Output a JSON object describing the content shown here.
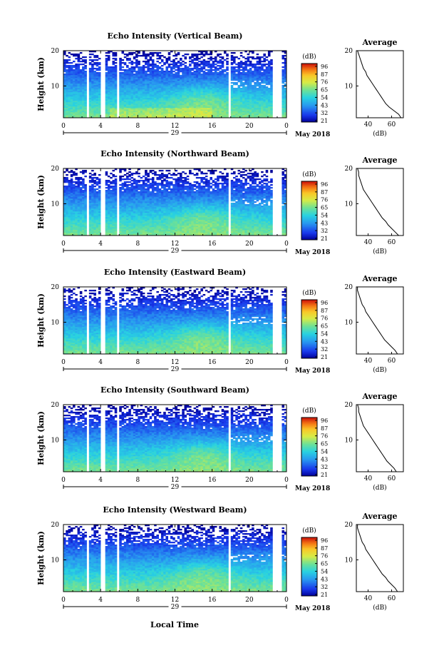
{
  "figure": {
    "bottom_label": "Local Time",
    "date_label": "May 2018",
    "heights": [
      0,
      10,
      20
    ],
    "ylabel": "Height (km)",
    "xticks": [
      "0",
      "4",
      "8",
      "12",
      "16",
      "20",
      "0"
    ],
    "colorbar_unit": "(dB)",
    "colorbar_ticks": [
      "96",
      "87",
      "76",
      "65",
      "54",
      "43",
      "32",
      "21"
    ],
    "profile_title": "Average",
    "profile_xticks": [
      "40",
      "60"
    ],
    "profile_xlabel": "(dB)"
  },
  "chart_data": [
    {
      "type": "heatmap",
      "title": "Echo Intensity (Vertical Beam)",
      "day_label": "29",
      "xlabel": "Local Time",
      "ylabel": "Height (km)",
      "xlim": [
        0,
        24
      ],
      "ylim": [
        1,
        20
      ],
      "color_range": [
        21,
        96
      ],
      "data_gaps_hours": [
        [
          2.4,
          2.7
        ],
        [
          4.1,
          4.4
        ],
        [
          5.7,
          6.0
        ],
        [
          17.7,
          18.0
        ],
        [
          22.6,
          23.5
        ]
      ],
      "profile": {
        "title": "Average",
        "xlabel": "(dB)",
        "heights_km": [
          1,
          2,
          3,
          4,
          5,
          6,
          7,
          8,
          9,
          10,
          11,
          12,
          13,
          14,
          15,
          16,
          17,
          18,
          19,
          20
        ],
        "values_db": [
          68,
          66,
          62,
          58,
          55,
          53,
          51,
          49,
          47,
          45,
          43,
          41,
          39,
          38,
          36,
          35,
          34,
          33,
          32,
          31
        ]
      }
    },
    {
      "type": "heatmap",
      "title": "Echo Intensity (Northward Beam)",
      "day_label": "29",
      "xlabel": "Local Time",
      "ylabel": "Height (km)",
      "xlim": [
        0,
        24
      ],
      "ylim": [
        1,
        20
      ],
      "color_range": [
        21,
        96
      ],
      "data_gaps_hours": [
        [
          2.4,
          2.7
        ],
        [
          4.1,
          4.4
        ],
        [
          5.7,
          6.0
        ],
        [
          17.7,
          18.0
        ],
        [
          22.6,
          23.5
        ]
      ],
      "profile": {
        "title": "Average",
        "xlabel": "(dB)",
        "heights_km": [
          1,
          2,
          3,
          4,
          5,
          6,
          7,
          8,
          9,
          10,
          11,
          12,
          13,
          14,
          15,
          16,
          17,
          18,
          19,
          20
        ],
        "values_db": [
          66,
          63,
          60,
          57,
          55,
          52,
          50,
          48,
          46,
          44,
          42,
          40,
          38,
          36,
          35,
          34,
          33,
          32,
          32,
          31
        ]
      }
    },
    {
      "type": "heatmap",
      "title": "Echo Intensity (Eastward Beam)",
      "day_label": "29",
      "xlabel": "Local Time",
      "ylabel": "Height (km)",
      "xlim": [
        0,
        24
      ],
      "ylim": [
        1,
        20
      ],
      "color_range": [
        21,
        96
      ],
      "data_gaps_hours": [
        [
          2.4,
          2.7
        ],
        [
          4.1,
          4.4
        ],
        [
          5.7,
          6.0
        ],
        [
          17.7,
          18.0
        ],
        [
          22.6,
          23.5
        ]
      ],
      "profile": {
        "title": "Average",
        "xlabel": "(dB)",
        "heights_km": [
          1,
          2,
          3,
          4,
          5,
          6,
          7,
          8,
          9,
          10,
          11,
          12,
          13,
          14,
          15,
          16,
          17,
          18,
          19,
          20
        ],
        "values_db": [
          65,
          63,
          60,
          57,
          54,
          52,
          50,
          48,
          46,
          44,
          42,
          40,
          38,
          37,
          35,
          34,
          33,
          32,
          31,
          31
        ]
      }
    },
    {
      "type": "heatmap",
      "title": "Echo Intensity (Southward Beam)",
      "day_label": "29",
      "xlabel": "Local Time",
      "ylabel": "Height (km)",
      "xlim": [
        0,
        24
      ],
      "ylim": [
        1,
        20
      ],
      "color_range": [
        21,
        96
      ],
      "data_gaps_hours": [
        [
          2.4,
          2.7
        ],
        [
          4.1,
          4.4
        ],
        [
          5.7,
          6.0
        ],
        [
          17.7,
          18.0
        ],
        [
          22.6,
          23.5
        ]
      ],
      "profile": {
        "title": "Average",
        "xlabel": "(dB)",
        "heights_km": [
          1,
          2,
          3,
          4,
          5,
          6,
          7,
          8,
          9,
          10,
          11,
          12,
          13,
          14,
          15,
          16,
          17,
          18,
          19,
          20
        ],
        "values_db": [
          64,
          62,
          59,
          56,
          54,
          52,
          50,
          48,
          46,
          44,
          42,
          40,
          38,
          36,
          35,
          34,
          33,
          32,
          32,
          31
        ]
      }
    },
    {
      "type": "heatmap",
      "title": "Echo Intensity (Westward Beam)",
      "day_label": "29",
      "xlabel": "Local Time",
      "ylabel": "Height (km)",
      "xlim": [
        0,
        24
      ],
      "ylim": [
        1,
        20
      ],
      "color_range": [
        21,
        96
      ],
      "data_gaps_hours": [
        [
          2.4,
          2.7
        ],
        [
          4.1,
          4.4
        ],
        [
          5.7,
          6.0
        ],
        [
          17.7,
          18.0
        ],
        [
          22.6,
          23.5
        ]
      ],
      "profile": {
        "title": "Average",
        "xlabel": "(dB)",
        "heights_km": [
          1,
          2,
          3,
          4,
          5,
          6,
          7,
          8,
          9,
          10,
          11,
          12,
          13,
          14,
          15,
          16,
          17,
          18,
          19,
          20
        ],
        "values_db": [
          65,
          63,
          60,
          57,
          55,
          52,
          50,
          48,
          46,
          44,
          42,
          40,
          38,
          37,
          35,
          34,
          33,
          32,
          31,
          31
        ]
      }
    }
  ]
}
